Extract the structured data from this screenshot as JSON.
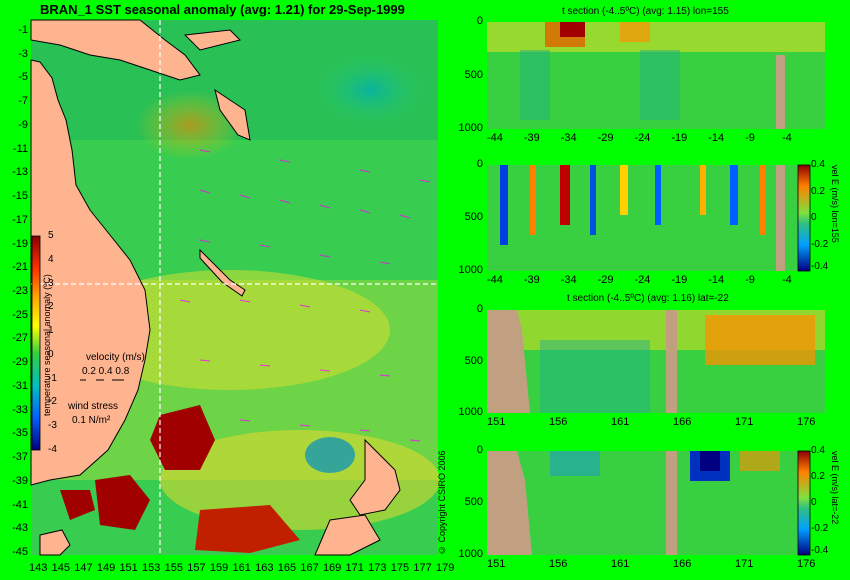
{
  "main_title": "BRAN_1 SST seasonal anomaly (avg: 1.21) for 29-Sep-1999",
  "map": {
    "lat_labels": [
      "-1",
      "-3",
      "-5",
      "-7",
      "-9",
      "-11",
      "-13",
      "-15",
      "-17",
      "-19",
      "-21",
      "-23",
      "-25",
      "-27",
      "-29",
      "-31",
      "-33",
      "-35",
      "-37",
      "-39",
      "-41",
      "-43",
      "-45"
    ],
    "lon_labels": [
      "143",
      "145",
      "147",
      "149",
      "151",
      "153",
      "155",
      "157",
      "159",
      "161",
      "163",
      "165",
      "167",
      "169",
      "171",
      "173",
      "175",
      "177",
      "179"
    ],
    "colorbar": {
      "label": "temperature seasonal anomaly (ºC)",
      "ticks": [
        "5",
        "4",
        "3",
        "2",
        "1",
        "0",
        "-1",
        "-2",
        "-3",
        "-4"
      ]
    },
    "velocity_legend": {
      "title": "velocity (m/s)",
      "values": "0.2 0.4 0.8"
    },
    "wind_legend": {
      "title": "wind stress",
      "value": "0.1 N/m²"
    },
    "copyright": "© Copyright CSIRO 2006"
  },
  "panels": [
    {
      "title": "t section (-4..5ºC) (avg: 1.15) lon=155",
      "y_ticks": [
        "0",
        "500",
        "1000"
      ],
      "x_ticks": [
        "-44",
        "-39",
        "-34",
        "-29",
        "-24",
        "-19",
        "-14",
        "-9",
        "-4"
      ]
    },
    {
      "title": "",
      "y_ticks": [
        "0",
        "500",
        "1000"
      ],
      "x_ticks": [
        "-44",
        "-39",
        "-34",
        "-29",
        "-24",
        "-19",
        "-14",
        "-9",
        "-4"
      ],
      "side_label": "vel E (m/s) lon=155",
      "cbar_ticks": [
        "0.4",
        "0.2",
        "0",
        "-0.2",
        "-0.4"
      ]
    },
    {
      "title": "t section (-4..5ºC) (avg: 1.16) lat=-22",
      "y_ticks": [
        "0",
        "500",
        "1000"
      ],
      "x_ticks": [
        "151",
        "156",
        "161",
        "166",
        "171",
        "176"
      ]
    },
    {
      "title": "",
      "y_ticks": [
        "0",
        "500",
        "1000"
      ],
      "x_ticks": [
        "151",
        "156",
        "161",
        "166",
        "171",
        "176"
      ],
      "side_label": "vel E (m/s) lat=-22",
      "cbar_ticks": [
        "0.4",
        "0.2",
        "0",
        "-0.2",
        "-0.4"
      ]
    }
  ]
}
